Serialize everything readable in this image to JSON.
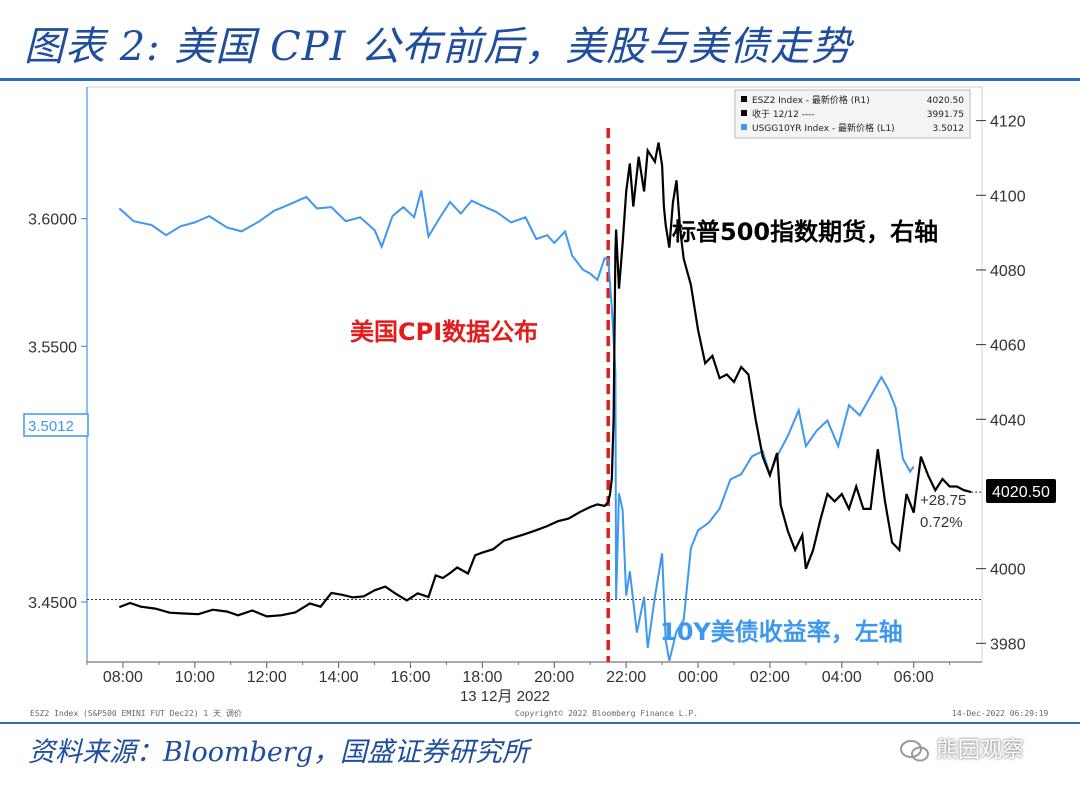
{
  "header": {
    "title": "图表 2:  美国 CPI 公布前后，美股与美债走势"
  },
  "footer": {
    "source": "资料来源：Bloomberg，国盛证券研究所",
    "watermark": "熊园观察"
  },
  "colors": {
    "title": "#1f4e9e",
    "yield": "#3f98f0",
    "futures": "#000000",
    "cpi_line": "#e31b1b",
    "yield_label": "#3f98f0"
  },
  "chart_data": {
    "type": "line",
    "date_label": "13 12月 2022",
    "x_ticks": [
      "08:00",
      "10:00",
      "12:00",
      "14:00",
      "16:00",
      "18:00",
      "20:00",
      "22:00",
      "00:00",
      "02:00",
      "04:00",
      "06:00"
    ],
    "left_axis": {
      "ticks": [
        "3.6000",
        "3.5500",
        "3.4500"
      ],
      "range": [
        3.4265,
        3.6515
      ]
    },
    "right_axis": {
      "ticks": [
        "4120",
        "4100",
        "4080",
        "4060",
        "4040",
        "4000",
        "3980"
      ],
      "range": [
        3975,
        4129
      ]
    },
    "event_time": 21.5,
    "series": [
      {
        "name": "USGG10YR Index - 最新价格 (L1)",
        "axis": "left",
        "last": "3.5012",
        "points": [
          [
            7.9,
            3.604
          ],
          [
            8.3,
            3.599
          ],
          [
            8.8,
            3.5975
          ],
          [
            9.2,
            3.5935
          ],
          [
            9.6,
            3.597
          ],
          [
            10.0,
            3.5985
          ],
          [
            10.4,
            3.601
          ],
          [
            10.9,
            3.5965
          ],
          [
            11.3,
            3.595
          ],
          [
            11.8,
            3.599
          ],
          [
            12.2,
            3.603
          ],
          [
            12.7,
            3.606
          ],
          [
            13.1,
            3.6085
          ],
          [
            13.4,
            3.604
          ],
          [
            13.8,
            3.6045
          ],
          [
            14.2,
            3.599
          ],
          [
            14.6,
            3.6005
          ],
          [
            15.0,
            3.5955
          ],
          [
            15.2,
            3.589
          ],
          [
            15.5,
            3.601
          ],
          [
            15.8,
            3.6045
          ],
          [
            16.1,
            3.6005
          ],
          [
            16.3,
            3.611
          ],
          [
            16.5,
            3.593
          ],
          [
            16.8,
            3.6
          ],
          [
            17.1,
            3.6065
          ],
          [
            17.4,
            3.602
          ],
          [
            17.7,
            3.607
          ],
          [
            18.0,
            3.605
          ],
          [
            18.4,
            3.6025
          ],
          [
            18.8,
            3.5985
          ],
          [
            19.2,
            3.6005
          ],
          [
            19.5,
            3.592
          ],
          [
            19.8,
            3.5935
          ],
          [
            20.0,
            3.5905
          ],
          [
            20.3,
            3.595
          ],
          [
            20.5,
            3.5855
          ],
          [
            20.8,
            3.58
          ],
          [
            21.0,
            3.5785
          ],
          [
            21.2,
            3.576
          ],
          [
            21.4,
            3.5845
          ],
          [
            21.5,
            3.584
          ],
          [
            21.6,
            3.565
          ],
          [
            21.7,
            3.54
          ],
          [
            21.72,
            3.451
          ],
          [
            21.8,
            3.4925
          ],
          [
            21.9,
            3.486
          ],
          [
            22.0,
            3.4525
          ],
          [
            22.1,
            3.462
          ],
          [
            22.3,
            3.438
          ],
          [
            22.5,
            3.452
          ],
          [
            22.6,
            3.432
          ],
          [
            22.8,
            3.452
          ],
          [
            23.0,
            3.469
          ],
          [
            23.1,
            3.435
          ],
          [
            23.2,
            3.427
          ],
          [
            23.4,
            3.4385
          ],
          [
            23.6,
            3.443
          ],
          [
            23.8,
            3.471
          ],
          [
            24.0,
            3.478
          ],
          [
            24.3,
            3.481
          ],
          [
            24.6,
            3.4865
          ],
          [
            24.9,
            3.498
          ],
          [
            25.2,
            3.5
          ],
          [
            25.5,
            3.507
          ],
          [
            25.8,
            3.509
          ],
          [
            26.0,
            3.5
          ],
          [
            26.2,
            3.507
          ],
          [
            26.5,
            3.515
          ],
          [
            26.8,
            3.525
          ],
          [
            27.0,
            3.511
          ],
          [
            27.3,
            3.517
          ],
          [
            27.6,
            3.521
          ],
          [
            27.9,
            3.511
          ],
          [
            28.2,
            3.527
          ],
          [
            28.5,
            3.523
          ],
          [
            28.8,
            3.5305
          ],
          [
            29.1,
            3.538
          ],
          [
            29.3,
            3.533
          ],
          [
            29.5,
            3.526
          ],
          [
            29.7,
            3.506
          ],
          [
            29.9,
            3.501
          ],
          [
            30.0,
            3.503
          ]
        ]
      },
      {
        "name": "ESZ2 Index - 最新价格 (R1)",
        "axis": "right",
        "last": "4020.50",
        "change": "+28.75",
        "change_pct": "0.72%",
        "points": [
          [
            7.9,
            3989.7
          ],
          [
            8.2,
            3990.8
          ],
          [
            8.5,
            3989.8
          ],
          [
            8.9,
            3989.3
          ],
          [
            9.3,
            3988.2
          ],
          [
            9.7,
            3988.0
          ],
          [
            10.1,
            3987.8
          ],
          [
            10.5,
            3989.0
          ],
          [
            10.9,
            3988.5
          ],
          [
            11.2,
            3987.5
          ],
          [
            11.6,
            3988.8
          ],
          [
            12.0,
            3987.2
          ],
          [
            12.4,
            3987.5
          ],
          [
            12.8,
            3988.3
          ],
          [
            13.2,
            3990.7
          ],
          [
            13.5,
            3989.8
          ],
          [
            13.8,
            3993.5
          ],
          [
            14.1,
            3993.0
          ],
          [
            14.4,
            3992.3
          ],
          [
            14.7,
            3992.6
          ],
          [
            15.0,
            3994.2
          ],
          [
            15.3,
            3995.2
          ],
          [
            15.6,
            3993.2
          ],
          [
            15.9,
            3991.5
          ],
          [
            16.2,
            3993.4
          ],
          [
            16.5,
            3992.4
          ],
          [
            16.7,
            3998.2
          ],
          [
            16.9,
            3997.5
          ],
          [
            17.1,
            3998.8
          ],
          [
            17.3,
            4000.3
          ],
          [
            17.6,
            3998.7
          ],
          [
            17.8,
            4003.6
          ],
          [
            18.0,
            4004.3
          ],
          [
            18.3,
            4005.2
          ],
          [
            18.6,
            4007.5
          ],
          [
            18.9,
            4008.4
          ],
          [
            19.2,
            4009.3
          ],
          [
            19.5,
            4010.3
          ],
          [
            19.8,
            4011.4
          ],
          [
            20.1,
            4012.7
          ],
          [
            20.4,
            4013.4
          ],
          [
            20.7,
            4015.1
          ],
          [
            21.0,
            4016.5
          ],
          [
            21.2,
            4017.2
          ],
          [
            21.4,
            4016.8
          ],
          [
            21.5,
            4017.8
          ],
          [
            21.55,
            4020.0
          ],
          [
            21.6,
            4024.0
          ],
          [
            21.65,
            4040.0
          ],
          [
            21.7,
            4085.0
          ],
          [
            21.72,
            4090.8
          ],
          [
            21.8,
            4075.0
          ],
          [
            21.9,
            4087.0
          ],
          [
            22.0,
            4101.0
          ],
          [
            22.1,
            4108.5
          ],
          [
            22.2,
            4097.0
          ],
          [
            22.35,
            4110.3
          ],
          [
            22.5,
            4101.0
          ],
          [
            22.6,
            4112.0
          ],
          [
            22.8,
            4109.0
          ],
          [
            22.9,
            4114.1
          ],
          [
            23.0,
            4108.0
          ],
          [
            23.05,
            4097.0
          ],
          [
            23.1,
            4092.0
          ],
          [
            23.2,
            4086.0
          ],
          [
            23.3,
            4098.0
          ],
          [
            23.4,
            4104.0
          ],
          [
            23.5,
            4091.0
          ],
          [
            23.6,
            4083.0
          ],
          [
            23.8,
            4076.0
          ],
          [
            24.0,
            4064.0
          ],
          [
            24.2,
            4055.0
          ],
          [
            24.4,
            4057.0
          ],
          [
            24.6,
            4051.0
          ],
          [
            24.8,
            4052.0
          ],
          [
            25.0,
            4050.0
          ],
          [
            25.2,
            4054.0
          ],
          [
            25.4,
            4052.0
          ],
          [
            25.6,
            4040.0
          ],
          [
            25.8,
            4030.0
          ],
          [
            26.0,
            4025.0
          ],
          [
            26.2,
            4031.0
          ],
          [
            26.3,
            4017.0
          ],
          [
            26.5,
            4010.0
          ],
          [
            26.7,
            4005.0
          ],
          [
            26.9,
            4009.0
          ],
          [
            27.0,
            4000.0
          ],
          [
            27.2,
            4005.0
          ],
          [
            27.4,
            4013.0
          ],
          [
            27.6,
            4020.0
          ],
          [
            27.8,
            4018.0
          ],
          [
            28.0,
            4020.0
          ],
          [
            28.2,
            4016.0
          ],
          [
            28.4,
            4022.0
          ],
          [
            28.6,
            4016.0
          ],
          [
            28.8,
            4016.0
          ],
          [
            29.0,
            4032.0
          ],
          [
            29.2,
            4018.0
          ],
          [
            29.4,
            4007.0
          ],
          [
            29.6,
            4005.0
          ],
          [
            29.8,
            4020.0
          ],
          [
            30.0,
            4015.0
          ],
          [
            30.2,
            4030.0
          ],
          [
            30.4,
            4025.0
          ],
          [
            30.6,
            4021.0
          ],
          [
            30.8,
            4024.0
          ],
          [
            31.0,
            4022.0
          ],
          [
            31.2,
            4022.0
          ],
          [
            31.4,
            4021.0
          ],
          [
            31.6,
            4020.5
          ]
        ]
      }
    ],
    "legend": {
      "rows": [
        {
          "label": "ESZ2 Index - 最新价格 (R1)",
          "value": "4020.50",
          "color": "#000000"
        },
        {
          "label": "收于 12/12 ----",
          "value": "3991.75",
          "color": "#000000"
        },
        {
          "label": "USGG10YR Index - 最新价格 (L1)",
          "value": "3.5012",
          "color": "#3f98f0"
        }
      ]
    },
    "annotations": {
      "cpi_text": "美国CPI数据公布",
      "futures_text": "标普500指数期货，右轴",
      "yield_text": "10Y美债收益率，左轴"
    },
    "reference": {
      "label": "收于 12/12",
      "value": 3991.75
    },
    "bottom_left_note": "ESZ2 Index (S&P500 EMINI FUT  Dec22) 1 天  调价",
    "copyright": "Copyright© 2022 Bloomberg Finance L.P.",
    "timestamp": "14-Dec-2022 06:29:19"
  }
}
